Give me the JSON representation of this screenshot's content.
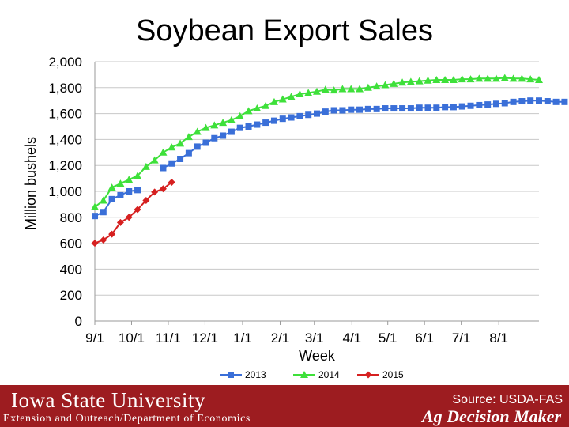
{
  "slide": {
    "title": "Soybean Export Sales"
  },
  "footer": {
    "university": "Iowa State University",
    "department": "Extension and Outreach/Department of Economics",
    "source": "Source: USDA-FAS",
    "brand": "Ag Decision Maker",
    "background_color": "#9d1c20"
  },
  "chart_data": {
    "type": "line",
    "title": "Soybean Export Sales",
    "xlabel": "Week",
    "ylabel": "Million bushels",
    "ylim": [
      0,
      2000
    ],
    "y_ticks": [
      0,
      200,
      400,
      600,
      800,
      1000,
      1200,
      1400,
      1600,
      1800,
      2000
    ],
    "y_tick_labels": [
      "0",
      "200",
      "400",
      "600",
      "800",
      "1,000",
      "1,200",
      "1,400",
      "1,600",
      "1,800",
      "2,000"
    ],
    "x_tick_labels": [
      "9/1",
      "10/1",
      "11/1",
      "12/1",
      "1/1",
      "2/1",
      "3/1",
      "4/1",
      "5/1",
      "6/1",
      "7/1",
      "8/1"
    ],
    "x_ticks_week": [
      0,
      4.3,
      8.6,
      12.9,
      17.3,
      21.7,
      25.7,
      30.1,
      34.3,
      38.6,
      42.9,
      47.3
    ],
    "x_range_weeks": [
      0,
      52
    ],
    "gridlines": "horizontal",
    "legend_position": "bottom",
    "series": [
      {
        "name": "2013",
        "color": "#3a6fd8",
        "marker": "square",
        "values": [
          810,
          840,
          940,
          970,
          1000,
          1010,
          null,
          null,
          1180,
          1215,
          1250,
          1295,
          1345,
          1375,
          1410,
          1430,
          1460,
          1490,
          1500,
          1515,
          1530,
          1545,
          1560,
          1570,
          1580,
          1590,
          1600,
          1615,
          1625,
          1625,
          1630,
          1630,
          1635,
          1635,
          1640,
          1640,
          1640,
          1640,
          1645,
          1645,
          1645,
          1650,
          1650,
          1655,
          1660,
          1665,
          1670,
          1675,
          1680,
          1690,
          1695,
          1700,
          1700,
          1695,
          1690,
          1690
        ]
      },
      {
        "name": "2014",
        "color": "#3ee03a",
        "marker": "triangle",
        "values": [
          880,
          930,
          1030,
          1060,
          1090,
          1120,
          1190,
          1240,
          1300,
          1340,
          1370,
          1420,
          1460,
          1490,
          1510,
          1530,
          1550,
          1580,
          1620,
          1640,
          1660,
          1690,
          1710,
          1730,
          1750,
          1760,
          1770,
          1785,
          1780,
          1790,
          1790,
          1790,
          1800,
          1810,
          1820,
          1830,
          1840,
          1845,
          1850,
          1855,
          1860,
          1860,
          1860,
          1865,
          1865,
          1870,
          1870,
          1870,
          1875,
          1870,
          1870,
          1865,
          1860
        ]
      },
      {
        "name": "2015",
        "color": "#d62020",
        "marker": "diamond",
        "values": [
          600,
          625,
          670,
          760,
          800,
          860,
          930,
          995,
          1020,
          1070
        ]
      }
    ]
  }
}
